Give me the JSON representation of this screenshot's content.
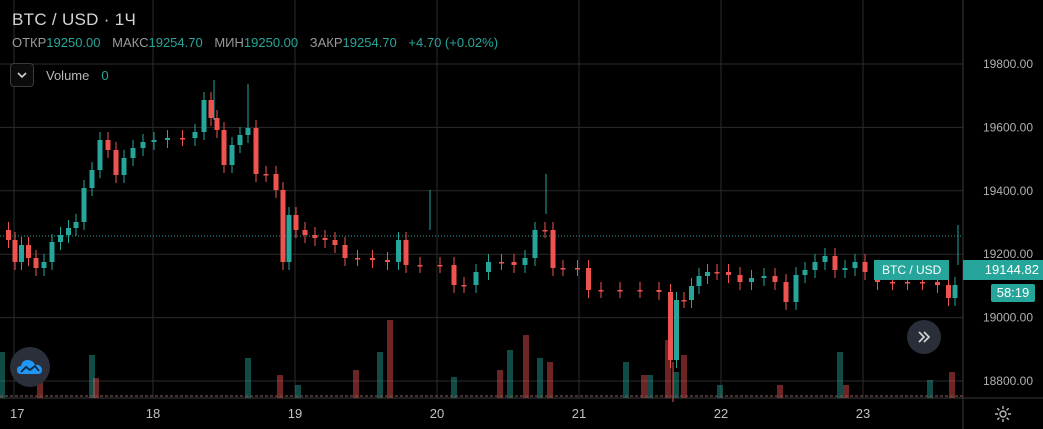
{
  "header": {
    "symbol_title": "BTC / USD · 1Ч",
    "open_label": "ОТКР",
    "open_value": "19250.00",
    "high_label": "МАКС",
    "high_value": "19254.70",
    "low_label": "МИН",
    "low_value": "19250.00",
    "close_label": "ЗАКР",
    "close_value": "19254.70",
    "change": "+4.70 (+0.02%)"
  },
  "volume_indicator": {
    "label": "Volume",
    "value": "0"
  },
  "price_axis": {
    "ticks": [
      "19800.00",
      "19600.00",
      "19400.00",
      "19200.00",
      "19000.00",
      "18800.00"
    ]
  },
  "time_axis": {
    "ticks": [
      "17",
      "18",
      "19",
      "20",
      "21",
      "22",
      "23"
    ]
  },
  "symbol_tag": "BTC / USD",
  "price_tag": "19144.82",
  "countdown": "58:19",
  "colors": {
    "up": "#26a69a",
    "down": "#ef5350",
    "grid": "#2b2b2b",
    "background": "#000000"
  },
  "icons": {
    "collapse": "chevron-down-icon",
    "scroll_right": "double-chevron-right-icon",
    "logo": "tradingview-cloud-icon",
    "settings": "gear-icon"
  }
}
